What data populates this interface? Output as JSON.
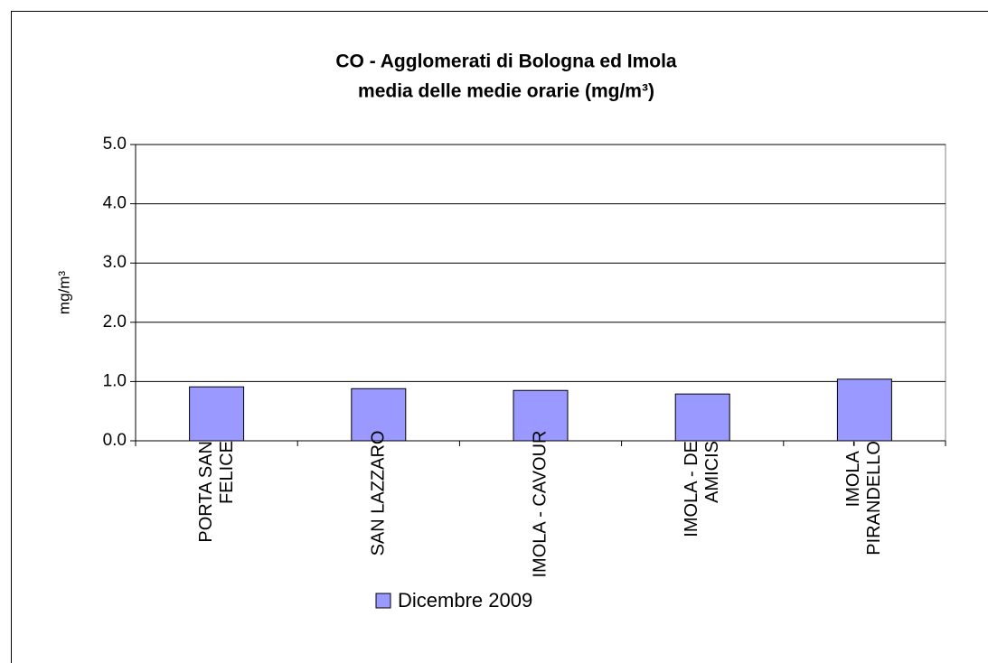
{
  "chart_data": {
    "type": "bar",
    "title": [
      "CO - Agglomerati di Bologna ed Imola",
      "media delle medie orarie  (mg/m³)"
    ],
    "y_label": "mg/m³",
    "categories": [
      "PORTA SAN FELICE",
      "SAN LAZZARO",
      "IMOLA - CAVOUR",
      "IMOLA - DE AMICIS",
      "IMOLA - PIRANDELLO"
    ],
    "series": [
      {
        "name": "Dicembre 2009",
        "color": "#9999ff",
        "values": [
          0.91,
          0.88,
          0.85,
          0.79,
          1.04
        ]
      }
    ],
    "ylim": [
      0,
      5
    ],
    "yticks": [
      {
        "value": 0,
        "label": "0.0"
      },
      {
        "value": 1,
        "label": "1.0"
      },
      {
        "value": 2,
        "label": "2.0"
      },
      {
        "value": 3,
        "label": "3.0"
      },
      {
        "value": 4,
        "label": "4.0"
      },
      {
        "value": 5,
        "label": "5.0"
      }
    ],
    "grid": true
  }
}
